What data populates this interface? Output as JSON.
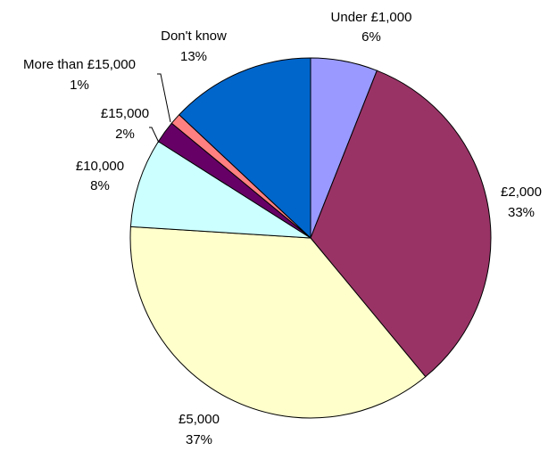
{
  "chart_data": {
    "type": "pie",
    "title": "",
    "categories": [
      "Under £1,000",
      "£2,000",
      "£5,000",
      "£10,000",
      "£15,000",
      "More than £15,000",
      "Don't know"
    ],
    "values": [
      6,
      33,
      37,
      8,
      2,
      1,
      13
    ],
    "value_labels": [
      "6%",
      "33%",
      "37%",
      "8%",
      "2%",
      "1%",
      "13%"
    ],
    "colors": [
      "#9999FF",
      "#993366",
      "#FFFFCC",
      "#CCFFFF",
      "#660066",
      "#FF8080",
      "#0066CC"
    ],
    "start_angle": "12 o'clock",
    "direction": "clockwise",
    "legend": "none",
    "labels": "category and percentage beside each slice"
  }
}
